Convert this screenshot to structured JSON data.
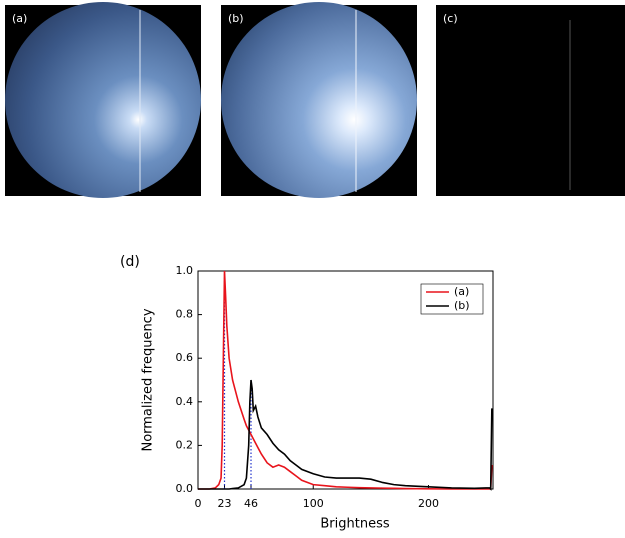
{
  "panels": [
    "(a)",
    "(b)",
    "(c)"
  ],
  "chart_data": {
    "type": "line",
    "label": "(d)",
    "x_label": "Brightness",
    "y_label": "Normalized frequency",
    "x": [
      0,
      10,
      15,
      18,
      20,
      21,
      22,
      23,
      24,
      25,
      27,
      30,
      35,
      40,
      42,
      44,
      45,
      46,
      47,
      48,
      50,
      52,
      55,
      60,
      65,
      70,
      75,
      80,
      85,
      90,
      100,
      110,
      120,
      130,
      140,
      150,
      160,
      170,
      180,
      200,
      220,
      240,
      250,
      253,
      254,
      255
    ],
    "series": [
      {
        "name": "(a)",
        "color": "#e8141c",
        "values": [
          0,
          0,
          0.005,
          0.02,
          0.05,
          0.2,
          0.6,
          1.0,
          0.88,
          0.75,
          0.6,
          0.5,
          0.4,
          0.32,
          0.29,
          0.27,
          0.26,
          0.25,
          0.24,
          0.23,
          0.21,
          0.19,
          0.16,
          0.12,
          0.1,
          0.11,
          0.1,
          0.08,
          0.06,
          0.04,
          0.02,
          0.015,
          0.01,
          0.008,
          0.006,
          0.005,
          0.004,
          0.003,
          0.002,
          0.001,
          0,
          0,
          0,
          0,
          0,
          0.11
        ]
      },
      {
        "name": "(b)",
        "color": "#000000",
        "values": [
          0,
          0,
          0,
          0,
          0,
          0,
          0,
          0,
          0,
          0,
          0,
          0.002,
          0.005,
          0.02,
          0.05,
          0.2,
          0.4,
          0.5,
          0.46,
          0.36,
          0.38,
          0.33,
          0.28,
          0.25,
          0.21,
          0.18,
          0.16,
          0.13,
          0.11,
          0.09,
          0.07,
          0.055,
          0.05,
          0.05,
          0.05,
          0.045,
          0.03,
          0.02,
          0.015,
          0.01,
          0.005,
          0.003,
          0.005,
          0.005,
          0,
          0.37
        ]
      }
    ],
    "reference_lines": [
      {
        "x": 23,
        "y": 1.0
      },
      {
        "x": 46,
        "y": 0.5
      }
    ],
    "reference_color": "#2233cc",
    "xlim": [
      0,
      256
    ],
    "ylim": [
      0,
      1
    ],
    "xticks": [
      0,
      23,
      46,
      100,
      200
    ],
    "yticks": [
      {
        "value": 0,
        "label": "0.0"
      },
      0.2,
      0.4,
      0.6,
      0.8,
      {
        "value": 1,
        "label": "1.0"
      }
    ],
    "legend": "upper right"
  }
}
